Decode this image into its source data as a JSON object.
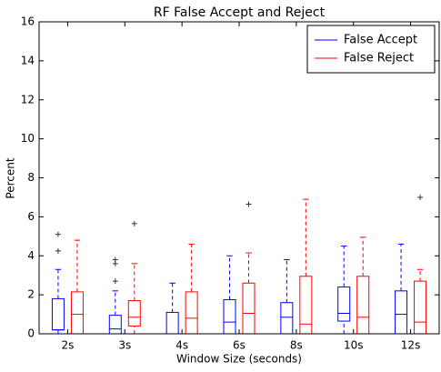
{
  "chart_data": {
    "type": "box",
    "title": "RF False Accept and Reject",
    "xlabel": "Window Size (seconds)",
    "ylabel": "Percent",
    "categories": [
      "2s",
      "3s",
      "4s",
      "6s",
      "8s",
      "10s",
      "12s"
    ],
    "ylim": [
      0,
      16
    ],
    "yticks": [
      0,
      2,
      4,
      6,
      8,
      10,
      12,
      14,
      16
    ],
    "legend": "upper right",
    "series": [
      {
        "name": "False Accept",
        "color": "#0000ff",
        "low": [
          0,
          0,
          0,
          0,
          0,
          0,
          0
        ],
        "q1": [
          0.2,
          0,
          0,
          0,
          0,
          0.65,
          0
        ],
        "median": [
          0.2,
          0.25,
          0,
          0.6,
          0.85,
          1.05,
          1.0
        ],
        "q3": [
          1.8,
          0.95,
          1.1,
          1.75,
          1.6,
          2.4,
          2.2
        ],
        "high": [
          3.3,
          2.2,
          2.6,
          4.0,
          3.8,
          4.5,
          4.6
        ],
        "fliers": [
          [
            4.25,
            5.1
          ],
          [
            2.7,
            3.6,
            3.8
          ],
          [],
          [],
          [],
          [],
          []
        ]
      },
      {
        "name": "False Reject",
        "color": "#ff0000",
        "low": [
          0,
          0,
          0,
          0,
          0,
          0,
          0
        ],
        "q1": [
          0,
          0.4,
          0,
          0,
          0,
          0,
          0
        ],
        "median": [
          1.0,
          0.85,
          0.8,
          1.05,
          0.5,
          0.85,
          0.6
        ],
        "q3": [
          2.15,
          1.7,
          2.15,
          2.6,
          2.95,
          2.95,
          2.7
        ],
        "high": [
          4.8,
          3.6,
          4.6,
          4.15,
          6.9,
          4.95,
          3.3
        ],
        "fliers": [
          [],
          [
            5.65
          ],
          [],
          [
            6.65
          ],
          [],
          [],
          [
            7.0
          ]
        ]
      }
    ]
  }
}
